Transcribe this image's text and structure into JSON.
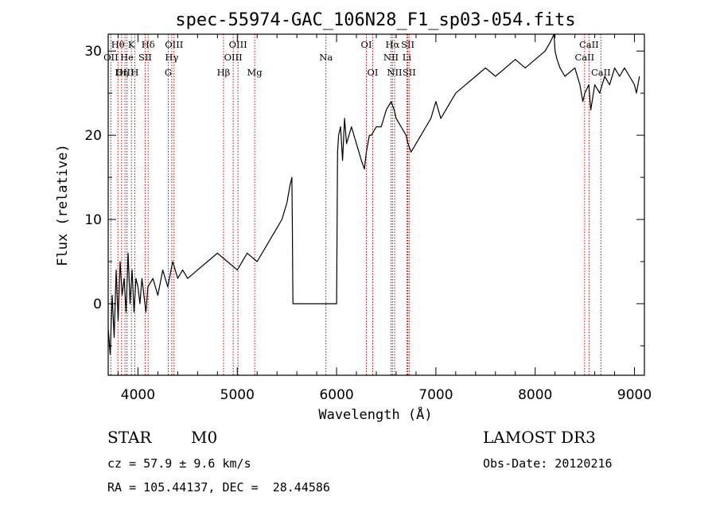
{
  "chart_data": {
    "type": "line",
    "title": "spec-55974-GAC_106N28_F1_sp03-054.fits",
    "xlabel": "Wavelength (Å)",
    "ylabel": "Flux (relative)",
    "xlim": [
      3700,
      9100
    ],
    "ylim": [
      -8.5,
      32
    ],
    "xticks": [
      4000,
      5000,
      6000,
      7000,
      8000,
      9000
    ],
    "xtick_labels": [
      "4000",
      "5000",
      "6000",
      "7000",
      "8000",
      "9000"
    ],
    "yticks": [
      0,
      10,
      20,
      30
    ],
    "ytick_labels": [
      "0",
      "10",
      "20",
      "30"
    ],
    "series": [
      {
        "name": "flux",
        "x": [
          3700,
          3720,
          3740,
          3760,
          3780,
          3800,
          3820,
          3840,
          3860,
          3880,
          3900,
          3920,
          3940,
          3960,
          3980,
          4000,
          4020,
          4040,
          4060,
          4080,
          4100,
          4150,
          4200,
          4250,
          4300,
          4350,
          4400,
          4450,
          4500,
          4600,
          4700,
          4800,
          4900,
          5000,
          5100,
          5200,
          5300,
          5400,
          5450,
          5500,
          5530,
          5550,
          5555,
          5560,
          5600,
          5800,
          6000,
          6010,
          6020,
          6040,
          6060,
          6080,
          6100,
          6150,
          6200,
          6250,
          6280,
          6300,
          6330,
          6350,
          6400,
          6450,
          6500,
          6550,
          6580,
          6600,
          6650,
          6700,
          6720,
          6750,
          6800,
          6850,
          6900,
          6950,
          7000,
          7050,
          7100,
          7150,
          7200,
          7300,
          7400,
          7500,
          7600,
          7700,
          7800,
          7900,
          8000,
          8100,
          8150,
          8190,
          8200,
          8220,
          8250,
          8300,
          8400,
          8450,
          8480,
          8500,
          8540,
          8560,
          8600,
          8650,
          8700,
          8750,
          8800,
          8850,
          8900,
          8950,
          9000,
          9020,
          9050
        ],
        "y": [
          -3,
          -6,
          1,
          -4,
          4,
          -2,
          5,
          1,
          3,
          -1,
          6,
          0,
          4,
          -1,
          3,
          2,
          0,
          3,
          1,
          -1,
          2,
          3,
          1,
          4,
          2,
          5,
          3,
          4,
          3,
          4,
          5,
          6,
          5,
          4,
          6,
          5,
          7,
          9,
          10,
          12,
          14,
          15,
          9,
          0,
          0,
          0,
          0,
          18,
          20,
          21,
          17,
          22,
          19,
          21,
          19,
          17,
          16,
          18,
          20,
          20,
          21,
          21,
          23,
          24,
          23,
          22,
          21,
          20,
          19,
          18,
          19,
          20,
          21,
          22,
          24,
          22,
          23,
          24,
          25,
          26,
          27,
          28,
          27,
          28,
          29,
          28,
          29,
          30,
          31,
          32,
          30,
          29,
          28,
          27,
          28,
          26,
          24,
          25,
          26,
          23,
          26,
          25,
          27,
          26,
          28,
          27,
          28,
          27,
          26,
          25,
          27
        ]
      }
    ],
    "lines": [
      {
        "name": "Hθ",
        "x": 3798,
        "row": 0
      },
      {
        "name": "OII",
        "x": 3727,
        "row": 1
      },
      {
        "name": "OIII",
        "x": 3869,
        "row": 2
      },
      {
        "name": "Hη",
        "x": 3835,
        "row": 2
      },
      {
        "name": "He",
        "x": 3889,
        "row": 1
      },
      {
        "name": "K",
        "x": 3934,
        "row": 0
      },
      {
        "name": "SII",
        "x": 4072,
        "row": 1
      },
      {
        "name": "H",
        "x": 3968,
        "row": 2
      },
      {
        "name": "Hδ",
        "x": 4102,
        "row": 0
      },
      {
        "name": "OIII",
        "x": 4363,
        "row": 0
      },
      {
        "name": "Hγ",
        "x": 4340,
        "row": 1
      },
      {
        "name": "G",
        "x": 4305,
        "row": 2
      },
      {
        "name": "OIII",
        "x": 5007,
        "row": 0
      },
      {
        "name": "OIII",
        "x": 4959,
        "row": 1
      },
      {
        "name": "Hβ",
        "x": 4861,
        "row": 2
      },
      {
        "name": "Mg",
        "x": 5175,
        "row": 2
      },
      {
        "name": "Na",
        "x": 5893,
        "row": 1
      },
      {
        "name": "OI",
        "x": 6300,
        "row": 0
      },
      {
        "name": "OI",
        "x": 6364,
        "row": 2
      },
      {
        "name": "Hα",
        "x": 6563,
        "row": 0
      },
      {
        "name": "NII",
        "x": 6548,
        "row": 1
      },
      {
        "name": "NII",
        "x": 6584,
        "row": 2
      },
      {
        "name": "SII",
        "x": 6717,
        "row": 0
      },
      {
        "name": "Li",
        "x": 6708,
        "row": 1
      },
      {
        "name": "SII",
        "x": 6731,
        "row": 2
      },
      {
        "name": "CaII",
        "x": 8542,
        "row": 0
      },
      {
        "name": "CaII",
        "x": 8498,
        "row": 1
      },
      {
        "name": "CaII",
        "x": 8662,
        "row": 2
      }
    ]
  },
  "info": {
    "class": "STAR",
    "subclass": "M0",
    "survey": "LAMOST DR3",
    "cz": "cz = 57.9 ± 9.6 km/s",
    "obs_date": "Obs-Date: 20120216",
    "coords": "RA = 105.44137, DEC =  28.44586"
  },
  "colors": {
    "marker_lines": "#cc0000",
    "spectrum": "#000000"
  }
}
